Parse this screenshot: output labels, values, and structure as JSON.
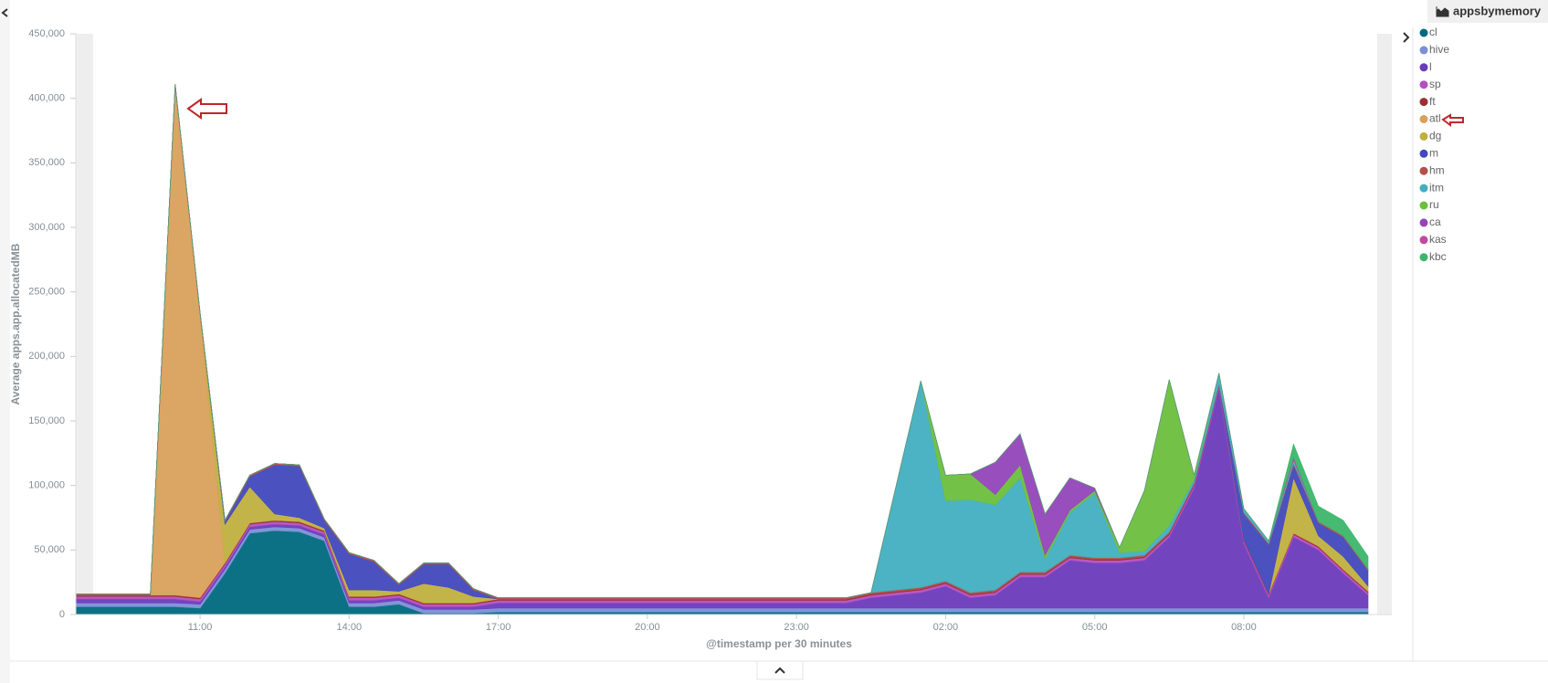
{
  "chart_data": {
    "type": "area",
    "stacked": true,
    "title": "appsbymemory",
    "x_label": "@timestamp per 30 minutes",
    "y_label": "Average apps.app.allocatedMB",
    "categories": [
      null,
      null,
      null,
      null,
      null,
      "11:00",
      null,
      null,
      null,
      null,
      null,
      "14:00",
      null,
      null,
      null,
      null,
      null,
      "17:00",
      null,
      null,
      null,
      null,
      null,
      "20:00",
      null,
      null,
      null,
      null,
      null,
      "23:00",
      null,
      null,
      null,
      null,
      null,
      "02:00",
      null,
      null,
      null,
      null,
      null,
      "05:00",
      null,
      null,
      null,
      null,
      null,
      "08:00",
      null,
      null,
      null,
      null,
      null
    ],
    "ylim": [
      0,
      450000
    ],
    "yticks": [
      0,
      {
        "value": 50000,
        "label": "50,000"
      },
      {
        "value": 100000,
        "label": "100,000"
      },
      {
        "value": 150000,
        "label": "150,000"
      },
      {
        "value": 200000,
        "label": "200,000"
      },
      {
        "value": 250000,
        "label": "250,000"
      },
      {
        "value": 300000,
        "label": "300,000"
      },
      {
        "value": 350000,
        "label": "350,000"
      },
      {
        "value": 400000,
        "label": "400,000"
      },
      {
        "value": 450000,
        "label": "450,000"
      }
    ],
    "grid": false,
    "legend": "right",
    "series": [
      {
        "name": "cl",
        "color": "#00697f",
        "values": [
          6000,
          6000,
          6000,
          6000,
          6000,
          5000,
          32000,
          63000,
          65000,
          64000,
          57000,
          6000,
          6000,
          8000,
          1000,
          1000,
          1000,
          2000,
          2000,
          2000,
          2000,
          2000,
          2000,
          2000,
          2000,
          2000,
          2000,
          2000,
          2000,
          2000,
          2000,
          2000,
          2000,
          2000,
          2000,
          2000,
          2000,
          2000,
          2000,
          2000,
          2000,
          2000,
          2000,
          2000,
          2000,
          2000,
          2000,
          2000,
          2000,
          2000,
          2000,
          2000,
          2000
        ]
      },
      {
        "name": "hive",
        "color": "#7b8fd6",
        "values": [
          3000,
          3000,
          3000,
          3000,
          3000,
          3000,
          3000,
          3000,
          3000,
          3000,
          3000,
          3000,
          3000,
          3000,
          3000,
          3000,
          3000,
          3000,
          3000,
          3000,
          3000,
          3000,
          3000,
          3000,
          3000,
          3000,
          3000,
          3000,
          3000,
          3000,
          3000,
          3000,
          3000,
          3000,
          3000,
          3000,
          3000,
          3000,
          3000,
          3000,
          3000,
          3000,
          3000,
          3000,
          3000,
          3000,
          3000,
          3000,
          3000,
          3000,
          3000,
          3000,
          3000
        ]
      },
      {
        "name": "l",
        "color": "#6a3bba",
        "values": [
          3000,
          3000,
          3000,
          3000,
          3000,
          2000,
          2000,
          2000,
          2000,
          2000,
          2000,
          2000,
          2000,
          2000,
          2000,
          2000,
          2000,
          4000,
          4000,
          4000,
          4000,
          4000,
          4000,
          4000,
          4000,
          4000,
          4000,
          4000,
          4000,
          4000,
          4000,
          4000,
          8000,
          10000,
          12000,
          17000,
          8000,
          10000,
          24000,
          24000,
          37000,
          35000,
          35000,
          37000,
          55000,
          93000,
          170000,
          50000,
          8000,
          55000,
          45000,
          27000,
          10000
        ]
      },
      {
        "name": "sp",
        "color": "#b54fc0",
        "values": [
          2000,
          2000,
          2000,
          2000,
          2000,
          2000,
          2000,
          2000,
          2000,
          2000,
          2000,
          2000,
          2000,
          2000,
          2000,
          2000,
          2000,
          2000,
          2000,
          2000,
          2000,
          2000,
          2000,
          2000,
          2000,
          2000,
          2000,
          2000,
          2000,
          2000,
          2000,
          2000,
          2000,
          2000,
          2000,
          2000,
          2000,
          2000,
          2000,
          2000,
          2000,
          2000,
          2000,
          2000,
          2000,
          2000,
          2000,
          2000,
          2000,
          2000,
          2000,
          2000,
          2000
        ]
      },
      {
        "name": "ft",
        "color": "#9b2f35",
        "values": [
          1000,
          1000,
          1000,
          1000,
          1000,
          1000,
          1000,
          1000,
          1000,
          1000,
          1000,
          1000,
          1000,
          1000,
          1000,
          1000,
          1000,
          1000,
          1000,
          1000,
          1000,
          1000,
          1000,
          1000,
          1000,
          1000,
          1000,
          1000,
          1000,
          1000,
          1000,
          1000,
          1000,
          1000,
          1000,
          1000,
          1000,
          1000,
          1000,
          1000,
          1000,
          1000,
          1000,
          1000,
          1000,
          1000,
          1000,
          1000,
          1000,
          1000,
          1000,
          1000,
          1000
        ]
      },
      {
        "name": "atl",
        "color": "#d9a05b",
        "values": [
          0,
          0,
          0,
          0,
          395000,
          220000,
          0,
          0,
          0,
          0,
          0,
          0,
          0,
          0,
          0,
          0,
          0,
          0,
          0,
          0,
          0,
          0,
          0,
          0,
          0,
          0,
          0,
          0,
          0,
          0,
          0,
          0,
          0,
          0,
          0,
          0,
          0,
          0,
          0,
          0,
          0,
          0,
          0,
          0,
          0,
          0,
          0,
          0,
          0,
          0,
          0,
          0,
          0
        ]
      },
      {
        "name": "dg",
        "color": "#c0b040",
        "values": [
          0,
          0,
          0,
          0,
          0,
          0,
          30000,
          28000,
          5000,
          3000,
          2000,
          5000,
          5000,
          2000,
          15000,
          12000,
          5000,
          0,
          0,
          0,
          0,
          0,
          0,
          0,
          0,
          0,
          0,
          0,
          0,
          0,
          0,
          0,
          0,
          0,
          0,
          0,
          0,
          0,
          0,
          0,
          0,
          0,
          0,
          0,
          0,
          0,
          0,
          0,
          0,
          43000,
          8000,
          10000,
          4000
        ]
      },
      {
        "name": "m",
        "color": "#4149bd",
        "values": [
          0,
          0,
          0,
          0,
          0,
          0,
          2000,
          8000,
          38000,
          40000,
          6000,
          28000,
          22000,
          5000,
          15000,
          18000,
          5000,
          0,
          0,
          0,
          0,
          0,
          0,
          0,
          0,
          0,
          0,
          0,
          0,
          0,
          0,
          0,
          0,
          0,
          0,
          0,
          0,
          0,
          0,
          0,
          0,
          0,
          0,
          0,
          0,
          0,
          0,
          20000,
          38000,
          10000,
          10000,
          15000,
          12000
        ]
      },
      {
        "name": "hm",
        "color": "#b3504a",
        "values": [
          1000,
          1000,
          1000,
          1000,
          1000,
          1000,
          1000,
          1000,
          1000,
          1000,
          1000,
          1000,
          1000,
          1000,
          1000,
          1000,
          1000,
          1000,
          1000,
          1000,
          1000,
          1000,
          1000,
          1000,
          1000,
          1000,
          1000,
          1000,
          1000,
          1000,
          1000,
          1000,
          1000,
          1000,
          1000,
          1000,
          1000,
          1000,
          1000,
          1000,
          1000,
          1000,
          1000,
          1000,
          1000,
          1000,
          1000,
          1000,
          1000,
          1000,
          1000,
          1000,
          1000
        ]
      },
      {
        "name": "itm",
        "color": "#41afc1",
        "values": [
          0,
          0,
          0,
          0,
          0,
          0,
          0,
          0,
          0,
          0,
          0,
          0,
          0,
          0,
          0,
          0,
          0,
          0,
          0,
          0,
          0,
          0,
          0,
          0,
          0,
          0,
          0,
          0,
          0,
          0,
          0,
          0,
          0,
          80000,
          160000,
          62000,
          72000,
          66000,
          73000,
          10000,
          33000,
          50000,
          4000,
          3000,
          5000,
          3000,
          8000,
          3000,
          2000,
          3000,
          0,
          0,
          0
        ]
      },
      {
        "name": "ru",
        "color": "#6cbf3d",
        "values": [
          0,
          0,
          0,
          0,
          0,
          0,
          0,
          0,
          0,
          0,
          0,
          0,
          0,
          0,
          0,
          0,
          0,
          0,
          0,
          0,
          0,
          0,
          0,
          0,
          0,
          0,
          0,
          0,
          0,
          0,
          0,
          0,
          0,
          0,
          0,
          20000,
          20000,
          8000,
          10000,
          3000,
          2000,
          2000,
          4000,
          47000,
          113000,
          3000,
          0,
          0,
          0,
          0,
          0,
          0,
          0
        ]
      },
      {
        "name": "ca",
        "color": "#9444bb",
        "values": [
          0,
          0,
          0,
          0,
          0,
          0,
          0,
          0,
          0,
          0,
          0,
          0,
          0,
          0,
          0,
          0,
          0,
          0,
          0,
          0,
          0,
          0,
          0,
          0,
          0,
          0,
          0,
          0,
          0,
          0,
          0,
          0,
          0,
          0,
          0,
          0,
          0,
          25000,
          24000,
          32000,
          25000,
          2000,
          0,
          0,
          0,
          0,
          0,
          0,
          0,
          0,
          0,
          0,
          0
        ]
      },
      {
        "name": "kas",
        "color": "#c3489f",
        "values": [
          0,
          0,
          0,
          0,
          0,
          0,
          0,
          0,
          0,
          0,
          0,
          0,
          0,
          0,
          0,
          0,
          0,
          0,
          0,
          0,
          0,
          0,
          0,
          0,
          0,
          0,
          0,
          0,
          0,
          0,
          0,
          0,
          0,
          0,
          0,
          0,
          0,
          0,
          0,
          0,
          0,
          0,
          0,
          0,
          0,
          0,
          0,
          0,
          0,
          2000,
          0,
          0,
          0
        ]
      },
      {
        "name": "kbc",
        "color": "#3cb66a",
        "values": [
          0,
          0,
          0,
          0,
          0,
          0,
          0,
          0,
          0,
          0,
          0,
          0,
          0,
          0,
          0,
          0,
          0,
          0,
          0,
          0,
          0,
          0,
          0,
          0,
          0,
          0,
          0,
          0,
          0,
          0,
          0,
          0,
          0,
          0,
          0,
          0,
          0,
          0,
          0,
          0,
          0,
          0,
          0,
          0,
          0,
          0,
          0,
          0,
          0,
          10000,
          12000,
          12000,
          10000
        ]
      }
    ]
  }
}
